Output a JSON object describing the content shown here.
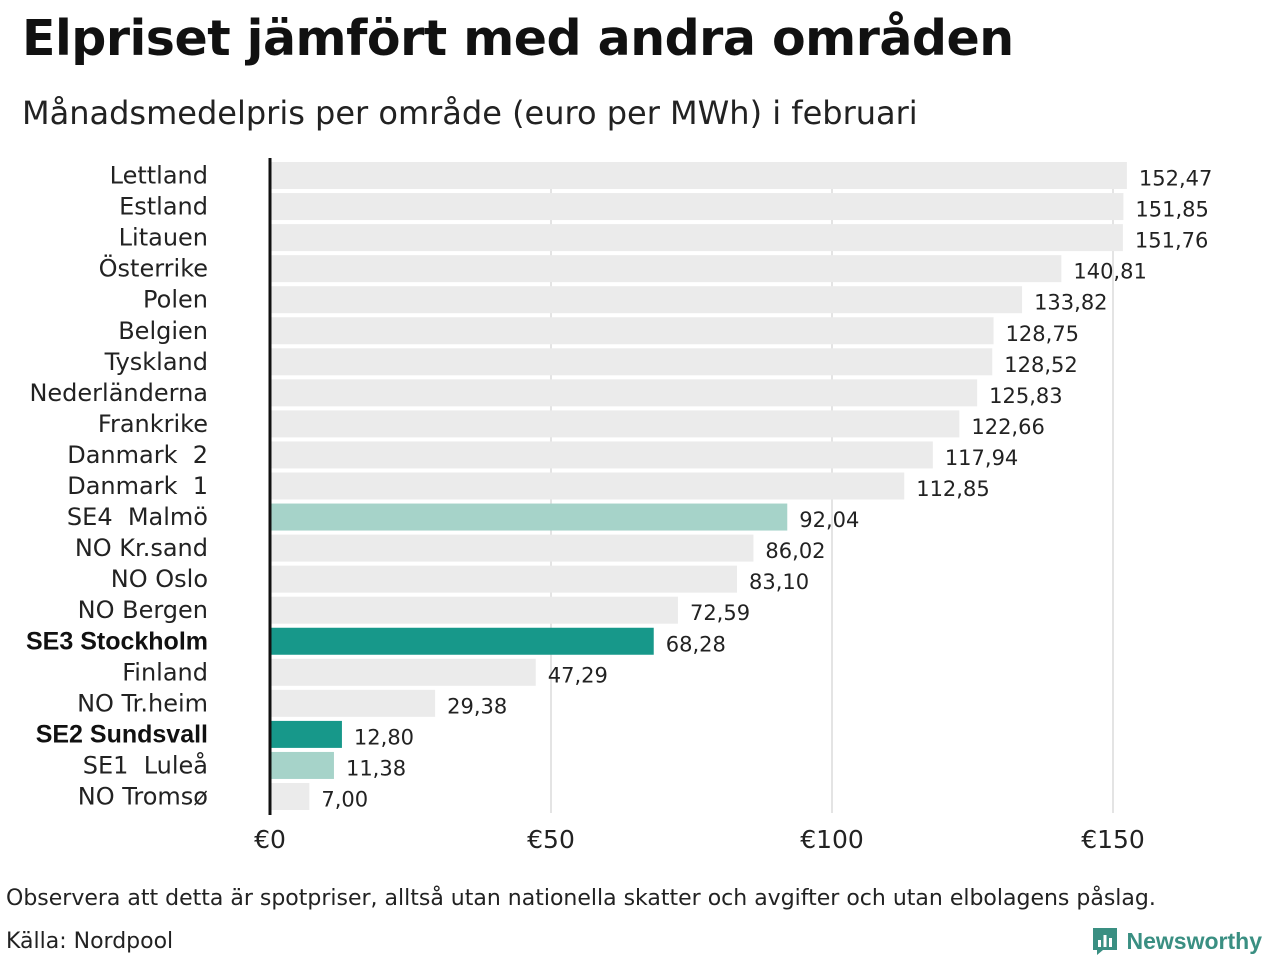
{
  "title": "Elpriset jämfört med andra områden",
  "subtitle": "Månadsmedelpris per område (euro per MWh) i februari",
  "note": "Observera att detta är spotpriser, alltså utan nationella skatter och avgifter och utan elbolagens påslag.",
  "source": "Källa: Nordpool",
  "brand": {
    "name": "Newsworthy",
    "icon": "newsworthy-logo-icon"
  },
  "colors": {
    "default": "#ebebeb",
    "highlight_strong": "#17988a",
    "highlight_light": "#a6d3c9",
    "brand": "#3a8f82"
  },
  "chart_data": {
    "type": "bar",
    "orientation": "horizontal",
    "title": "Elpriset jämfört med andra områden",
    "subtitle": "Månadsmedelpris per område (euro per MWh) i februari",
    "xlim": [
      0,
      160
    ],
    "xticks": [
      0,
      50,
      100,
      150
    ],
    "xtick_labels": [
      "€0",
      "€50",
      "€100",
      "€150"
    ],
    "grid": true,
    "categories": [
      "Lettland",
      "Estland",
      "Litauen",
      "Österrike",
      "Polen",
      "Belgien",
      "Tyskland",
      "Nederländerna",
      "Frankrike",
      "Danmark  2",
      "Danmark  1",
      "SE4  Malmö",
      "NO Kr.sand",
      "NO Oslo",
      "NO Bergen",
      "SE3 Stockholm",
      "Finland",
      "NO Tr.heim",
      "SE2 Sundsvall",
      "SE1  Luleå",
      "NO Tromsø"
    ],
    "values": [
      152.47,
      151.85,
      151.76,
      140.81,
      133.82,
      128.75,
      128.52,
      125.83,
      122.66,
      117.94,
      112.85,
      92.04,
      86.02,
      83.1,
      72.59,
      68.28,
      47.29,
      29.38,
      12.8,
      11.38,
      7.0
    ],
    "value_labels": [
      "152,47",
      "151,85",
      "151,76",
      "140,81",
      "133,82",
      "128,75",
      "128,52",
      "125,83",
      "122,66",
      "117,94",
      "112,85",
      "92,04",
      "86,02",
      "83,10",
      "72,59",
      "68,28",
      "47,29",
      "29,38",
      "12,80",
      "11,38",
      "7,00"
    ],
    "highlight": [
      "default",
      "default",
      "default",
      "default",
      "default",
      "default",
      "default",
      "default",
      "default",
      "default",
      "default",
      "light",
      "default",
      "default",
      "default",
      "strong",
      "default",
      "default",
      "strong",
      "light",
      "default"
    ],
    "bold_labels": [
      false,
      false,
      false,
      false,
      false,
      false,
      false,
      false,
      false,
      false,
      false,
      false,
      false,
      false,
      false,
      true,
      false,
      false,
      true,
      false,
      false
    ]
  }
}
